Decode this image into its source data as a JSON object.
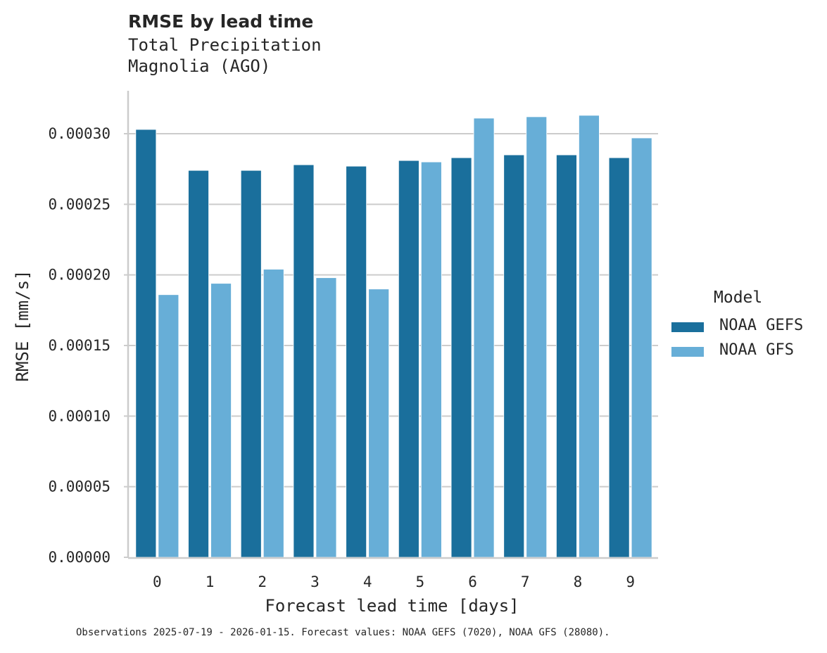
{
  "chart": {
    "title": "RMSE by lead time",
    "subtitle_line1": "Total Precipitation",
    "subtitle_line2": "Magnolia (AGO)",
    "footer": "Observations 2025-07-19 - 2026-01-15. Forecast values: NOAA GEFS (7020), NOAA GFS (28080).",
    "legend_title": "Model"
  },
  "colors": {
    "NOAA GEFS": "#1a6f9c",
    "NOAA GFS": "#67aed7",
    "grid": "#cccccc",
    "axis": "#cccccc",
    "text": "#262626"
  },
  "chart_data": {
    "type": "bar",
    "title": "RMSE by lead time",
    "subtitle": "Total Precipitation — Magnolia (AGO)",
    "xlabel": "Forecast lead time [days]",
    "ylabel": "RMSE [mm/s]",
    "categories": [
      "0",
      "1",
      "2",
      "3",
      "4",
      "5",
      "6",
      "7",
      "8",
      "9"
    ],
    "series": [
      {
        "name": "NOAA GEFS",
        "values": [
          0.000303,
          0.000274,
          0.000274,
          0.000278,
          0.000277,
          0.000281,
          0.000283,
          0.000285,
          0.000285,
          0.000283
        ]
      },
      {
        "name": "NOAA GFS",
        "values": [
          0.000186,
          0.000194,
          0.000204,
          0.000198,
          0.00019,
          0.00028,
          0.000311,
          0.000312,
          0.000313,
          0.000297
        ]
      }
    ],
    "yticks": [
      "0.00000",
      "0.00005",
      "0.00010",
      "0.00015",
      "0.00020",
      "0.00025",
      "0.00030"
    ],
    "ylim": [
      0,
      0.00033
    ],
    "grid": "horizontal",
    "legend_title": "Model",
    "legend_position": "right",
    "footer": "Observations 2025-07-19 - 2026-01-15. Forecast values: NOAA GEFS (7020), NOAA GFS (28080)."
  }
}
